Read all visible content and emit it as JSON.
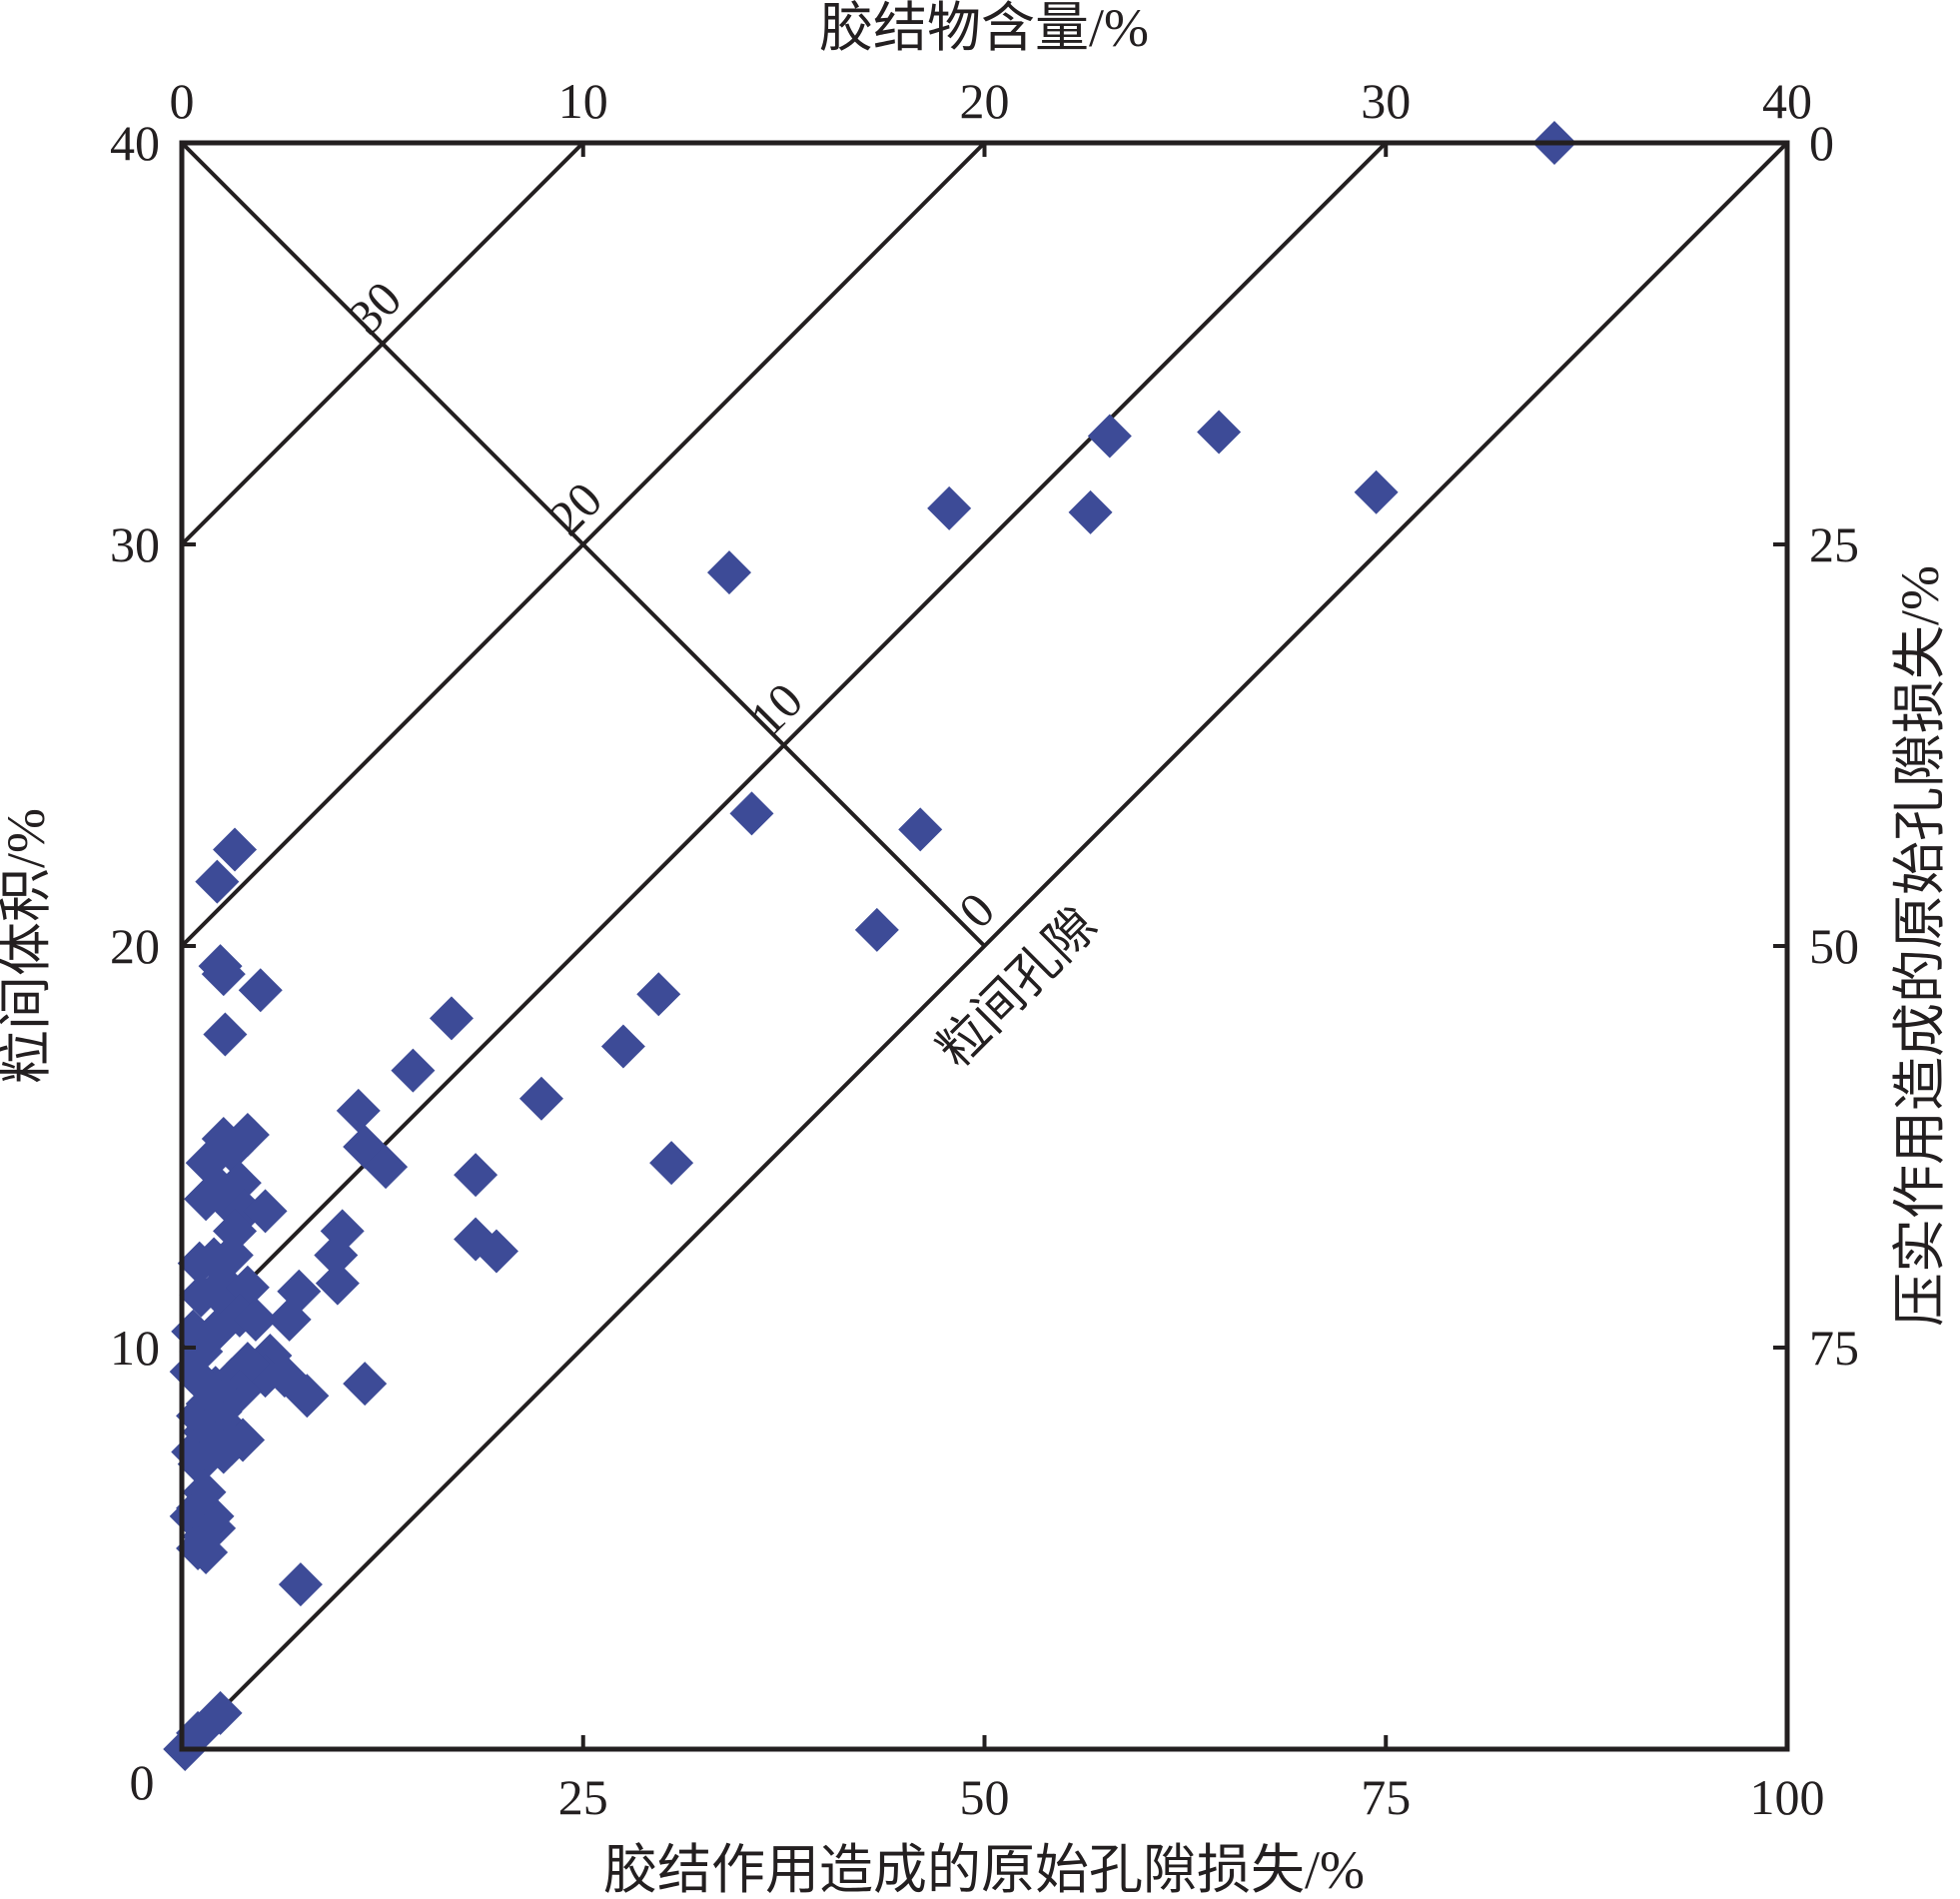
{
  "chart_data": {
    "type": "scatter",
    "title": "",
    "axes": {
      "bottom": {
        "label": "胶结作用造成的原始孔隙损失/%",
        "range": [
          0,
          100
        ],
        "ticks": [
          "0",
          "25",
          "50",
          "75",
          "100"
        ]
      },
      "left": {
        "label": "粒间体积/%",
        "range": [
          0,
          40
        ],
        "ticks": [
          "0",
          "10",
          "20",
          "30",
          "40"
        ]
      },
      "top": {
        "label": "胶结物含量/%",
        "range": [
          0,
          40
        ],
        "ticks": [
          "0",
          "10",
          "20",
          "30",
          "40"
        ]
      },
      "right": {
        "label": "压实作用造成的原始孔隙损失/%",
        "range": [
          100,
          0
        ],
        "ticks": [
          "0",
          "25",
          "50",
          "75"
        ]
      }
    },
    "grid": false,
    "guide_lines": {
      "cement_content": [
        10,
        20,
        30,
        40
      ],
      "intergranular_porosity": {
        "title": "粒间孔隙",
        "values": [
          0,
          10,
          20,
          30
        ],
        "labels": [
          "0",
          "10",
          "20",
          "30"
        ]
      }
    },
    "marker_color": "#3d4b97",
    "points": [
      [
        85.5,
        40.0
      ],
      [
        57.8,
        32.7
      ],
      [
        64.6,
        32.8
      ],
      [
        74.4,
        31.3
      ],
      [
        47.8,
        30.9
      ],
      [
        56.6,
        30.8
      ],
      [
        34.1,
        29.3
      ],
      [
        35.5,
        23.3
      ],
      [
        46.0,
        22.9
      ],
      [
        43.3,
        20.4
      ],
      [
        3.3,
        22.4
      ],
      [
        2.2,
        21.6
      ],
      [
        2.4,
        19.5
      ],
      [
        2.6,
        19.3
      ],
      [
        4.9,
        18.9
      ],
      [
        2.7,
        17.8
      ],
      [
        16.8,
        18.2
      ],
      [
        29.7,
        18.8
      ],
      [
        27.5,
        17.5
      ],
      [
        14.4,
        16.9
      ],
      [
        22.4,
        16.2
      ],
      [
        11.0,
        15.9
      ],
      [
        11.4,
        15.0
      ],
      [
        12.7,
        14.5
      ],
      [
        18.3,
        14.3
      ],
      [
        30.5,
        14.6
      ],
      [
        4.1,
        15.3
      ],
      [
        2.6,
        15.2
      ],
      [
        1.6,
        14.6
      ],
      [
        3.1,
        14.9
      ],
      [
        3.6,
        14.1
      ],
      [
        2.5,
        13.9
      ],
      [
        1.5,
        13.7
      ],
      [
        2.9,
        13.6
      ],
      [
        3.9,
        13.4
      ],
      [
        5.2,
        13.4
      ],
      [
        3.3,
        12.9
      ],
      [
        10.0,
        12.9
      ],
      [
        9.6,
        12.3
      ],
      [
        9.7,
        11.6
      ],
      [
        18.3,
        12.7
      ],
      [
        19.6,
        12.4
      ],
      [
        1.1,
        12.1
      ],
      [
        2.0,
        12.2
      ],
      [
        3.1,
        12.3
      ],
      [
        2.6,
        11.6
      ],
      [
        1.2,
        11.3
      ],
      [
        2.9,
        11.1
      ],
      [
        4.1,
        11.5
      ],
      [
        3.6,
        10.8
      ],
      [
        4.6,
        10.7
      ],
      [
        7.3,
        11.4
      ],
      [
        6.7,
        10.7
      ],
      [
        2.1,
        10.4
      ],
      [
        1.2,
        9.9
      ],
      [
        0.7,
        10.4
      ],
      [
        5.5,
        9.8
      ],
      [
        5.2,
        9.3
      ],
      [
        6.4,
        9.3
      ],
      [
        4.1,
        9.6
      ],
      [
        3.1,
        9.2
      ],
      [
        3.6,
        8.9
      ],
      [
        2.1,
        9.0
      ],
      [
        1.1,
        9.2
      ],
      [
        0.6,
        9.4
      ],
      [
        11.4,
        9.1
      ],
      [
        7.8,
        8.8
      ],
      [
        1.6,
        8.6
      ],
      [
        2.4,
        8.4
      ],
      [
        1.0,
        8.3
      ],
      [
        2.6,
        8.1
      ],
      [
        1.4,
        7.9
      ],
      [
        3.8,
        7.7
      ],
      [
        2.1,
        7.6
      ],
      [
        3.1,
        7.6
      ],
      [
        2.6,
        7.4
      ],
      [
        0.7,
        7.4
      ],
      [
        1.1,
        7.1
      ],
      [
        1.4,
        6.4
      ],
      [
        1.0,
        6.0
      ],
      [
        1.9,
        5.8
      ],
      [
        0.6,
        5.8
      ],
      [
        1.4,
        5.3
      ],
      [
        2.0,
        5.5
      ],
      [
        1.0,
        5.0
      ],
      [
        1.5,
        4.9
      ],
      [
        7.4,
        4.1
      ],
      [
        2.4,
        0.9
      ],
      [
        1.0,
        0.4
      ],
      [
        0.2,
        0.0
      ]
    ]
  }
}
